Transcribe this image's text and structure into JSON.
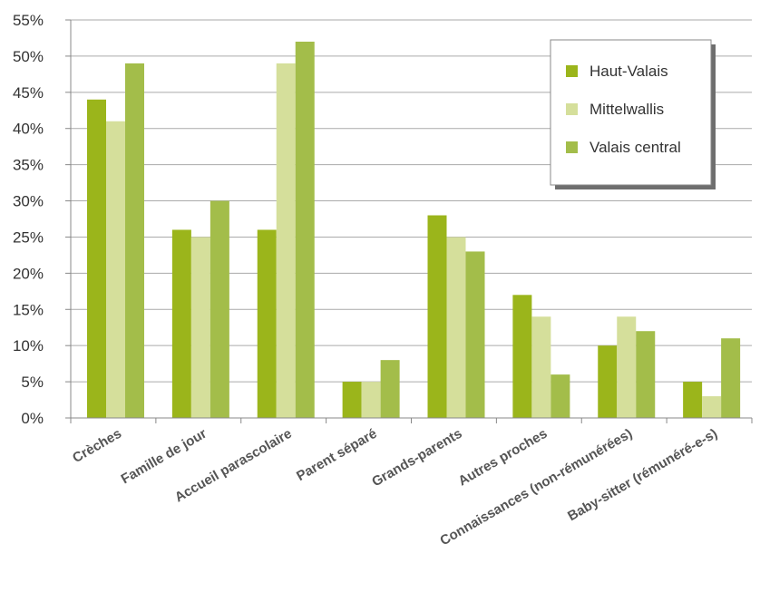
{
  "chart_data": {
    "type": "bar",
    "categories": [
      "Crèches",
      "Famille de jour",
      "Accueil parascolaire",
      "Parent séparé",
      "Grands-parents",
      "Autres proches",
      "Connaissances (non-rémunérées)",
      "Baby-sitter (rémunéré-e-s)"
    ],
    "series": [
      {
        "name": "Haut-Valais",
        "color": "#9bb51b",
        "values": [
          44,
          26,
          26,
          5,
          28,
          17,
          10,
          5
        ]
      },
      {
        "name": "Mittelwallis",
        "color": "#d5df9b",
        "values": [
          41,
          25,
          49,
          5,
          25,
          14,
          14,
          3
        ]
      },
      {
        "name": "Valais central",
        "color": "#a3bd4a",
        "values": [
          49,
          30,
          52,
          8,
          23,
          6,
          12,
          11
        ]
      }
    ],
    "ylim": [
      0,
      55
    ],
    "yticks": [
      0,
      5,
      10,
      15,
      20,
      25,
      30,
      35,
      40,
      45,
      50,
      55
    ],
    "ytick_labels": [
      "0%",
      "5%",
      "10%",
      "15%",
      "20%",
      "25%",
      "30%",
      "35%",
      "40%",
      "45%",
      "50%",
      "55%"
    ],
    "grid": true,
    "legend_position": "top-right",
    "title": "",
    "xlabel": "",
    "ylabel": ""
  }
}
